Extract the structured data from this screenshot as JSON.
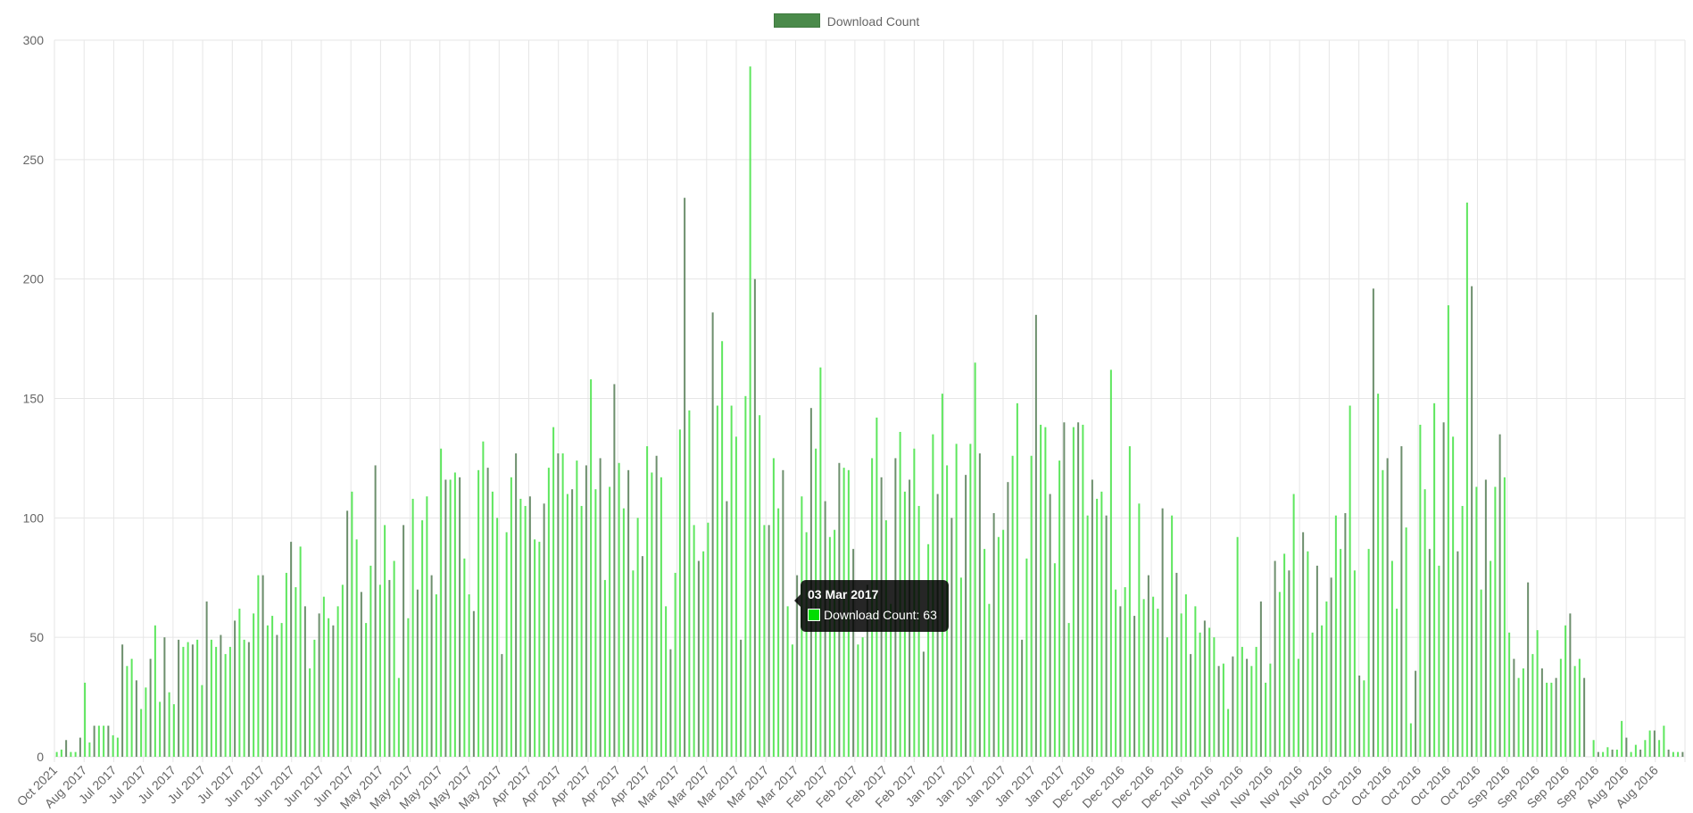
{
  "colors": {
    "bar_light": "#5ee65e",
    "bar_dark": "#6d8f6d",
    "legend": "#4a8a4a",
    "tooltip_swatch": "#00dd00",
    "grid": "#e6e6e6",
    "tick_text": "#666666"
  },
  "legend": {
    "label": "Download Count"
  },
  "tooltip": {
    "title": "03 Mar 2017",
    "label": "Download Count: 63"
  },
  "chart_data": {
    "type": "bar",
    "ylim": [
      0,
      300
    ],
    "yticks": [
      0,
      50,
      100,
      150,
      200,
      250,
      300
    ],
    "grid": true,
    "legend_position": "top",
    "series": [
      {
        "name": "Download Count",
        "values": [
          2,
          3,
          7,
          2,
          2,
          8,
          31,
          6,
          13,
          13,
          13,
          13,
          9,
          8,
          47,
          38,
          41,
          32,
          20,
          29,
          41,
          55,
          23,
          50,
          27,
          22,
          49,
          46,
          48,
          47,
          49,
          30,
          65,
          49,
          46,
          51,
          43,
          46,
          57,
          62,
          49,
          48,
          60,
          76,
          76,
          55,
          59,
          51,
          56,
          77,
          90,
          71,
          88,
          63,
          37,
          49,
          60,
          67,
          58,
          55,
          63,
          72,
          103,
          111,
          91,
          69,
          56,
          80,
          122,
          72,
          97,
          74,
          82,
          33,
          97,
          58,
          108,
          70,
          99,
          109,
          76,
          68,
          129,
          116,
          116,
          119,
          117,
          83,
          68,
          61,
          120,
          132,
          121,
          111,
          100,
          43,
          94,
          117,
          127,
          108,
          105,
          109,
          91,
          90,
          106,
          121,
          138,
          127,
          127,
          110,
          112,
          124,
          105,
          122,
          158,
          112,
          125,
          74,
          113,
          156,
          123,
          104,
          120,
          78,
          100,
          84,
          130,
          119,
          126,
          117,
          63,
          45,
          77,
          137,
          234,
          145,
          97,
          82,
          86,
          98,
          186,
          147,
          174,
          107,
          147,
          134,
          49,
          151,
          289,
          200,
          143,
          97,
          97,
          125,
          104,
          120,
          63,
          47,
          76,
          109,
          94,
          146,
          129,
          163,
          107,
          92,
          95,
          123,
          121,
          120,
          87,
          47,
          50,
          72,
          125,
          142,
          117,
          99,
          64,
          125,
          136,
          111,
          116,
          129,
          105,
          44,
          89,
          135,
          110,
          152,
          122,
          100,
          131,
          75,
          118,
          131,
          165,
          127,
          87,
          64,
          102,
          92,
          95,
          115,
          126,
          148,
          49,
          83,
          126,
          185,
          139,
          138,
          110,
          81,
          124,
          140,
          56,
          138,
          140,
          139,
          101,
          116,
          108,
          111,
          101,
          162,
          70,
          63,
          71,
          130,
          59,
          106,
          66,
          76,
          67,
          62,
          104,
          50,
          101,
          77,
          60,
          68,
          43,
          63,
          52,
          57,
          54,
          50,
          38,
          39,
          20,
          42,
          92,
          46,
          41,
          38,
          46,
          65,
          31,
          39,
          82,
          69,
          85,
          78,
          110,
          41,
          94,
          86,
          52,
          80,
          55,
          65,
          75,
          101,
          87,
          102,
          147,
          78,
          34,
          32,
          87,
          196,
          152,
          120,
          125,
          82,
          62,
          130,
          96,
          14,
          36,
          139,
          112,
          87,
          148,
          80,
          140,
          189,
          134,
          86,
          105,
          232,
          197,
          113,
          70,
          116,
          82,
          113,
          135,
          117,
          52,
          41,
          33,
          37,
          73,
          43,
          53,
          37,
          31,
          31,
          33,
          41,
          55,
          60,
          38,
          41,
          33,
          0,
          7,
          2,
          2,
          4,
          3,
          3,
          15,
          8,
          2,
          5,
          3,
          7,
          11,
          11,
          7,
          13,
          3,
          2,
          2,
          2
        ]
      }
    ],
    "x_ticks": [
      "Oct 2021",
      "Aug 2017",
      "Jul 2017",
      "Jul 2017",
      "Jul 2017",
      "Jul 2017",
      "Jul 2017",
      "Jun 2017",
      "Jun 2017",
      "Jun 2017",
      "Jun 2017",
      "May 2017",
      "May 2017",
      "May 2017",
      "May 2017",
      "May 2017",
      "Apr 2017",
      "Apr 2017",
      "Apr 2017",
      "Apr 2017",
      "Apr 2017",
      "Mar 2017",
      "Mar 2017",
      "Mar 2017",
      "Mar 2017",
      "Mar 2017",
      "Feb 2017",
      "Feb 2017",
      "Feb 2017",
      "Feb 2017",
      "Jan 2017",
      "Jan 2017",
      "Jan 2017",
      "Jan 2017",
      "Jan 2017",
      "Dec 2016",
      "Dec 2016",
      "Dec 2016",
      "Dec 2016",
      "Nov 2016",
      "Nov 2016",
      "Nov 2016",
      "Nov 2016",
      "Nov 2016",
      "Oct 2016",
      "Oct 2016",
      "Oct 2016",
      "Oct 2016",
      "Oct 2016",
      "Sep 2016",
      "Sep 2016",
      "Sep 2016",
      "Sep 2016",
      "Aug 2016",
      "Aug 2016"
    ]
  }
}
